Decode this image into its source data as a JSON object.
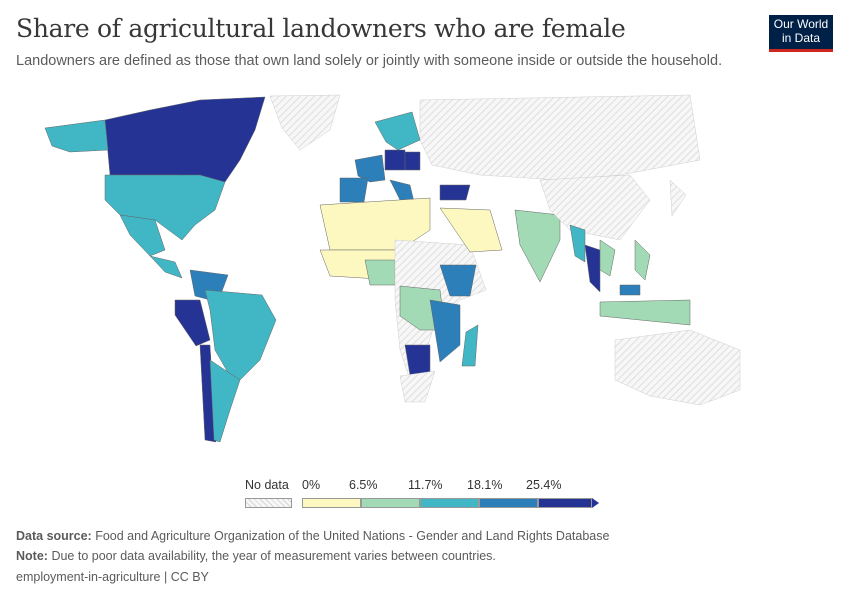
{
  "header": {
    "title": "Share of agricultural landowners who are female",
    "subtitle": "Landowners are defined as those that own land solely or jointly with someone inside or outside the household.",
    "logo": "Our World in Data"
  },
  "legend": {
    "no_data_label": "No data",
    "ticks": [
      "0%",
      "6.5%",
      "11.7%",
      "18.1%",
      "25.4%"
    ],
    "colors": [
      "#fdf8c0",
      "#a1dab4",
      "#41b6c4",
      "#2c7fb8",
      "#253494"
    ],
    "no_data_color": "#eeeeee"
  },
  "countries": [
    {
      "name": "Canada",
      "bin": 4
    },
    {
      "name": "Alaska (United States)",
      "bin": 2
    },
    {
      "name": "Greenland",
      "bin": -1
    },
    {
      "name": "United States",
      "bin": 2
    },
    {
      "name": "Mexico",
      "bin": 2
    },
    {
      "name": "Central America",
      "bin": 2
    },
    {
      "name": "Colombia/Venezuela",
      "bin": 3
    },
    {
      "name": "Peru",
      "bin": 4
    },
    {
      "name": "Brazil",
      "bin": 2
    },
    {
      "name": "Chile",
      "bin": 4
    },
    {
      "name": "Argentina",
      "bin": 2
    },
    {
      "name": "Russia",
      "bin": -1
    },
    {
      "name": "Scandinavia",
      "bin": 2
    },
    {
      "name": "France",
      "bin": 3
    },
    {
      "name": "Spain",
      "bin": 3
    },
    {
      "name": "Germany",
      "bin": 4
    },
    {
      "name": "Poland",
      "bin": 4
    },
    {
      "name": "Italy",
      "bin": 3
    },
    {
      "name": "Turkey",
      "bin": 4
    },
    {
      "name": "North Africa",
      "bin": 0
    },
    {
      "name": "West Africa",
      "bin": 0
    },
    {
      "name": "Nigeria",
      "bin": 1
    },
    {
      "name": "Central Africa",
      "bin": -1
    },
    {
      "name": "DR Congo",
      "bin": 1
    },
    {
      "name": "Ethiopia",
      "bin": 3
    },
    {
      "name": "Tanzania",
      "bin": 3
    },
    {
      "name": "Madagascar",
      "bin": 2
    },
    {
      "name": "Zimbabwe",
      "bin": 4
    },
    {
      "name": "South Africa",
      "bin": -1
    },
    {
      "name": "Saudi Arabia",
      "bin": 0
    },
    {
      "name": "India",
      "bin": 1
    },
    {
      "name": "China",
      "bin": -1
    },
    {
      "name": "Myanmar",
      "bin": 2
    },
    {
      "name": "Thailand",
      "bin": 4
    },
    {
      "name": "Vietnam",
      "bin": 1
    },
    {
      "name": "Philippines",
      "bin": 1
    },
    {
      "name": "Malaysia",
      "bin": 3
    },
    {
      "name": "Indonesia",
      "bin": 1
    },
    {
      "name": "Australia",
      "bin": -1
    },
    {
      "name": "Japan",
      "bin": -1
    }
  ],
  "footer": {
    "source_label": "Data source:",
    "source": "Food and Agriculture Organization of the United Nations - Gender and Land Rights Database",
    "note_label": "Note:",
    "note": "Due to poor data availability, the year of measurement varies between countries.",
    "slug": "employment-in-agriculture | CC BY"
  }
}
